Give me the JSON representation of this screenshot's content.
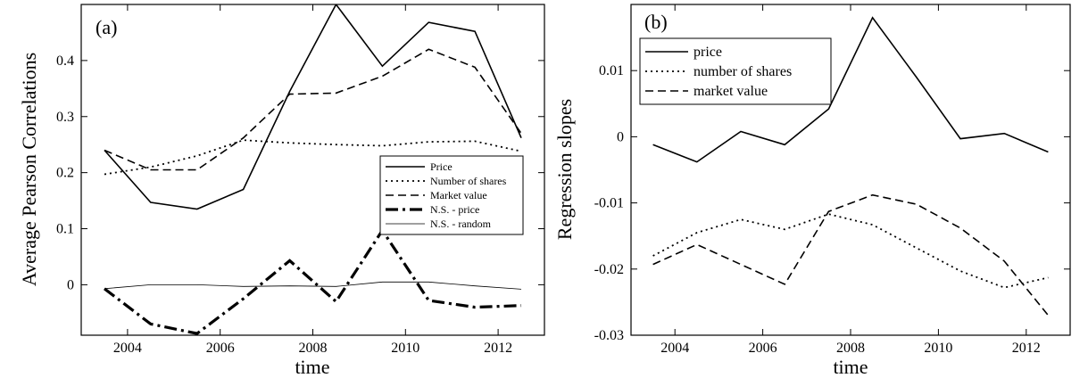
{
  "chart_data": [
    {
      "type": "line",
      "panel_label": "(a)",
      "xlabel": "time",
      "ylabel": "Average Pearson Correlations",
      "xlim": [
        2003,
        2013
      ],
      "ylim": [
        -0.09,
        0.5
      ],
      "xticks": [
        2004,
        2006,
        2008,
        2010,
        2012
      ],
      "yticks": [
        0,
        0.1,
        0.2,
        0.3,
        0.4
      ],
      "ytick_labels": [
        "0",
        "0.1",
        "0.2",
        "0.3",
        "0.4"
      ],
      "legend_position": "center-right",
      "x": [
        2003.5,
        2004.5,
        2005.5,
        2006.5,
        2007.5,
        2008.5,
        2009.5,
        2010.5,
        2011.5,
        2012.5
      ],
      "series": [
        {
          "name": "Price",
          "style": "solid",
          "values": [
            0.24,
            0.147,
            0.135,
            0.17,
            0.345,
            0.5,
            0.39,
            0.468,
            0.452,
            0.262
          ]
        },
        {
          "name": "Number of shares",
          "style": "dotted",
          "values": [
            0.197,
            0.21,
            0.23,
            0.258,
            0.253,
            0.25,
            0.248,
            0.255,
            0.256,
            0.238
          ]
        },
        {
          "name": "Market value",
          "style": "dashed",
          "values": [
            0.24,
            0.205,
            0.205,
            0.262,
            0.34,
            0.342,
            0.372,
            0.42,
            0.388,
            0.27
          ]
        },
        {
          "name": "N.S. - price",
          "style": "thick-dashdot",
          "values": [
            -0.007,
            -0.07,
            -0.087,
            -0.025,
            0.043,
            -0.03,
            0.097,
            -0.028,
            -0.04,
            -0.037
          ]
        },
        {
          "name": "N.S. - random",
          "style": "thin",
          "values": [
            -0.007,
            0.0,
            0.0,
            -0.003,
            -0.002,
            -0.003,
            0.005,
            0.005,
            -0.002,
            -0.008
          ]
        }
      ]
    },
    {
      "type": "line",
      "panel_label": "(b)",
      "xlabel": "time",
      "ylabel": "Regression slopes",
      "xlim": [
        2003,
        2013
      ],
      "ylim": [
        -0.03,
        0.02
      ],
      "xticks": [
        2004,
        2006,
        2008,
        2010,
        2012
      ],
      "yticks": [
        -0.03,
        -0.02,
        -0.01,
        0,
        0.01
      ],
      "ytick_labels": [
        "-0.03",
        "-0.02",
        "-0.01",
        "0",
        "0.01"
      ],
      "legend_position": "top-left",
      "x": [
        2003.5,
        2004.5,
        2005.5,
        2006.5,
        2007.5,
        2008.5,
        2009.5,
        2010.5,
        2011.5,
        2012.5
      ],
      "series": [
        {
          "name": "price",
          "style": "solid",
          "values": [
            -0.0012,
            -0.0038,
            0.0008,
            -0.0012,
            0.0042,
            0.018,
            0.009,
            -0.0003,
            0.0005,
            -0.0023
          ]
        },
        {
          "name": "number of shares",
          "style": "dotted",
          "values": [
            -0.018,
            -0.0145,
            -0.0125,
            -0.014,
            -0.0117,
            -0.0133,
            -0.0168,
            -0.0203,
            -0.0228,
            -0.0213
          ]
        },
        {
          "name": "market value",
          "style": "dashed",
          "values": [
            -0.0193,
            -0.0163,
            -0.0193,
            -0.0223,
            -0.0113,
            -0.0088,
            -0.0102,
            -0.0138,
            -0.0188,
            -0.027
          ]
        }
      ]
    }
  ]
}
